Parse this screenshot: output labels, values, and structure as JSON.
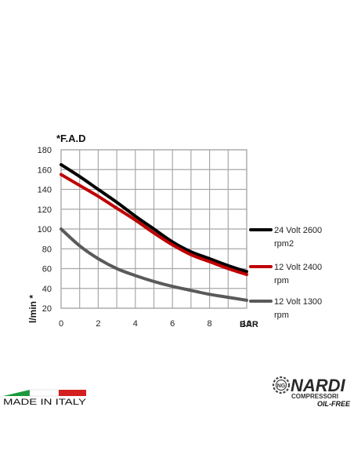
{
  "chart_data": {
    "type": "line",
    "title": "*F.A.D",
    "xlabel": "BAR",
    "ylabel": "l/min *",
    "xlim": [
      0,
      10
    ],
    "ylim": [
      20,
      180
    ],
    "x_ticks": [
      "0",
      "2",
      "4",
      "6",
      "8",
      "10"
    ],
    "y_ticks": [
      "20",
      "40",
      "60",
      "80",
      "100",
      "120",
      "140",
      "160",
      "180"
    ],
    "grid": true,
    "legend_position": "right",
    "series": [
      {
        "name_line1": "24 Volt 2600",
        "name_line2": "rpm2",
        "color": "#000000",
        "x": [
          0,
          1,
          2,
          3,
          4,
          5,
          6,
          7,
          8,
          9,
          10
        ],
        "y": [
          165,
          153,
          140,
          127,
          113,
          100,
          87,
          77,
          70,
          63,
          57
        ]
      },
      {
        "name_line1": "12 Volt 2400",
        "name_line2": "rpm",
        "color": "#c00000",
        "x": [
          0,
          1,
          2,
          3,
          4,
          5,
          6,
          7,
          8,
          9,
          10
        ],
        "y": [
          155,
          144,
          133,
          121,
          109,
          96,
          84,
          74,
          67,
          60,
          54
        ]
      },
      {
        "name_line1": "12 Volt 1300",
        "name_line2": "rpm",
        "color": "#5a5a5a",
        "x": [
          0,
          1,
          2,
          3,
          4,
          5,
          6,
          7,
          8,
          9,
          10
        ],
        "y": [
          100,
          83,
          70,
          60,
          53,
          47,
          42,
          38,
          34,
          31,
          28
        ]
      }
    ]
  },
  "footer": {
    "made_in_label": "MADE IN ITALY",
    "flag_colors": [
      "#1a9a3a",
      "#ffffff",
      "#d42020"
    ],
    "brand_name": "NARDI",
    "brand_logo_icon": "ng-gear-logo-icon",
    "brand_subtitle": "COMPRESSORI",
    "brand_tagline": "OIL-FREE"
  }
}
